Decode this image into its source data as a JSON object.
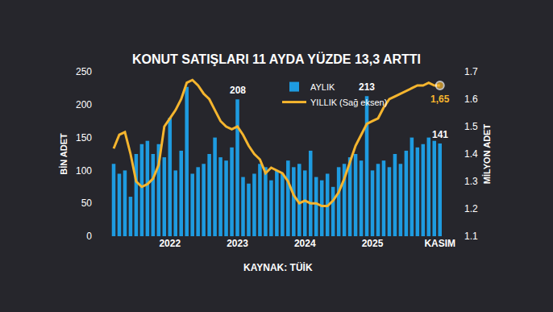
{
  "chart_data": {
    "type": "bar",
    "title": "KONUT SATIŞLARI 11 AYDA YÜZDE 13,3 ARTTI",
    "source": "KAYNAK: TÜİK",
    "y_label": "BİN ADET",
    "y2_label": "MİLYON ADET",
    "categories": [
      null,
      null,
      null,
      null,
      null,
      null,
      null,
      null,
      null,
      null,
      "2022",
      null,
      null,
      null,
      null,
      null,
      null,
      null,
      null,
      null,
      null,
      null,
      "2023",
      null,
      null,
      null,
      null,
      null,
      null,
      null,
      null,
      null,
      null,
      null,
      "2024",
      null,
      null,
      null,
      null,
      null,
      null,
      null,
      null,
      null,
      null,
      null,
      "2025",
      null,
      null,
      null,
      null,
      null,
      null,
      null,
      null,
      null,
      null,
      null,
      "KASIM"
    ],
    "series": [
      {
        "name": "AYLIK",
        "type": "bar",
        "color": "#1e9be0",
        "axis": "y",
        "values": [
          110,
          95,
          100,
          60,
          125,
          140,
          145,
          125,
          140,
          120,
          180,
          100,
          130,
          227,
          95,
          105,
          110,
          125,
          150,
          120,
          115,
          135,
          208,
          90,
          80,
          95,
          110,
          105,
          85,
          100,
          95,
          115,
          105,
          110,
          100,
          130,
          90,
          85,
          95,
          75,
          105,
          110,
          120,
          125,
          115,
          213,
          100,
          110,
          115,
          105,
          125,
          110,
          130,
          150,
          135,
          140,
          150,
          145,
          141
        ]
      },
      {
        "name": "YILLIK (Sağ eksen)",
        "type": "line",
        "color": "#f5b52e",
        "axis": "y2",
        "line_style": "solid",
        "values": [
          1.42,
          1.47,
          1.48,
          1.4,
          1.3,
          1.28,
          1.29,
          1.31,
          1.36,
          1.5,
          1.53,
          1.56,
          1.6,
          1.66,
          1.67,
          1.65,
          1.62,
          1.6,
          1.56,
          1.52,
          1.5,
          1.49,
          1.5,
          1.47,
          1.43,
          1.4,
          1.38,
          1.33,
          1.35,
          1.34,
          1.33,
          1.3,
          1.25,
          1.22,
          1.23,
          1.22,
          1.22,
          1.21,
          1.21,
          1.23,
          1.26,
          1.31,
          1.37,
          1.43,
          1.47,
          1.51,
          1.52,
          1.53,
          1.57,
          1.6,
          1.61,
          1.62,
          1.63,
          1.64,
          1.65,
          1.65,
          1.66,
          1.65,
          1.65
        ]
      }
    ],
    "annotations": [
      {
        "text": "208",
        "index": 22,
        "value": 208,
        "axis": "y"
      },
      {
        "text": "213",
        "index": 45,
        "value": 213,
        "axis": "y"
      },
      {
        "text": "141",
        "index": 58,
        "value": 141,
        "axis": "y"
      },
      {
        "text": "1,65",
        "index": 58,
        "value": 1.65,
        "axis": "y2"
      }
    ],
    "ylim": [
      0,
      250
    ],
    "yticks": [
      0,
      50,
      100,
      150,
      200,
      250
    ],
    "y2lim": [
      1.1,
      1.7
    ],
    "y2ticks": [
      1.1,
      1.2,
      1.3,
      1.4,
      1.5,
      1.6,
      1.7
    ],
    "grid": false,
    "legend": "top",
    "data_labels": false
  }
}
